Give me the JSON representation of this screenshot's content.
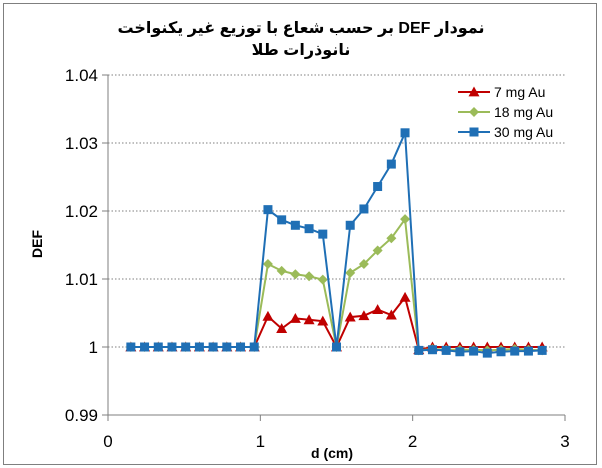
{
  "chart_data": {
    "type": "line",
    "title_lines": [
      "نمودار DEF بر حسب شعاع با توزیع غیر یکنواخت",
      "نانوذرات طلا"
    ],
    "xlabel": "d (cm)",
    "ylabel": "DEF",
    "xlim": [
      0,
      3
    ],
    "ylim": [
      0.99,
      1.04
    ],
    "xticks": [
      "0",
      "1",
      "2",
      "3"
    ],
    "yticks": [
      "0.99",
      "1",
      "1.01",
      "1.02",
      "1.03",
      "1.04"
    ],
    "xtick_values": [
      0,
      1,
      2,
      3
    ],
    "ytick_values": [
      0.99,
      1.0,
      1.01,
      1.02,
      1.03,
      1.04
    ],
    "grid": "horizontal dotted",
    "legend_position": "top-right",
    "x": [
      0.15,
      0.24,
      0.33,
      0.42,
      0.51,
      0.6,
      0.69,
      0.78,
      0.87,
      0.96,
      1.05,
      1.14,
      1.23,
      1.32,
      1.41,
      1.5,
      1.59,
      1.68,
      1.77,
      1.86,
      1.95,
      2.04,
      2.13,
      2.22,
      2.31,
      2.4,
      2.49,
      2.58,
      2.67,
      2.76,
      2.85
    ],
    "series": [
      {
        "name": "7 mg  Au",
        "color": "#c00000",
        "marker": "triangle",
        "values": [
          1.0,
          1.0,
          1.0,
          1.0,
          1.0,
          1.0,
          1.0,
          1.0,
          1.0,
          1.0,
          1.0045,
          1.0027,
          1.0042,
          1.004,
          1.0038,
          1.0,
          1.0044,
          1.0046,
          1.0055,
          1.0047,
          1.0073,
          0.9996,
          1.0,
          1.0,
          1.0,
          1.0,
          1.0,
          1.0,
          1.0,
          1.0,
          1.0
        ]
      },
      {
        "name": "18 mg  Au",
        "color": "#9bbb59",
        "marker": "diamond",
        "values": [
          1.0,
          1.0,
          1.0,
          1.0,
          1.0,
          1.0,
          1.0,
          1.0,
          1.0,
          1.0,
          1.0122,
          1.0112,
          1.0107,
          1.0104,
          1.0099,
          1.0,
          1.0109,
          1.0122,
          1.0142,
          1.016,
          1.0188,
          0.9995,
          0.9997,
          0.9996,
          0.9996,
          0.9996,
          0.9995,
          0.9996,
          0.9997,
          0.9996,
          0.9995
        ]
      },
      {
        "name": "30 mg  Au",
        "color": "#1f6fb5",
        "marker": "square",
        "values": [
          1.0,
          1.0,
          1.0,
          1.0,
          1.0,
          1.0,
          1.0,
          1.0,
          1.0,
          1.0,
          1.0202,
          1.0187,
          1.0179,
          1.0174,
          1.0166,
          1.0,
          1.0179,
          1.0203,
          1.0236,
          1.0269,
          1.0315,
          0.9995,
          0.9996,
          0.9995,
          0.9993,
          0.9994,
          0.9991,
          0.9993,
          0.9994,
          0.9994,
          0.9995
        ]
      }
    ]
  }
}
